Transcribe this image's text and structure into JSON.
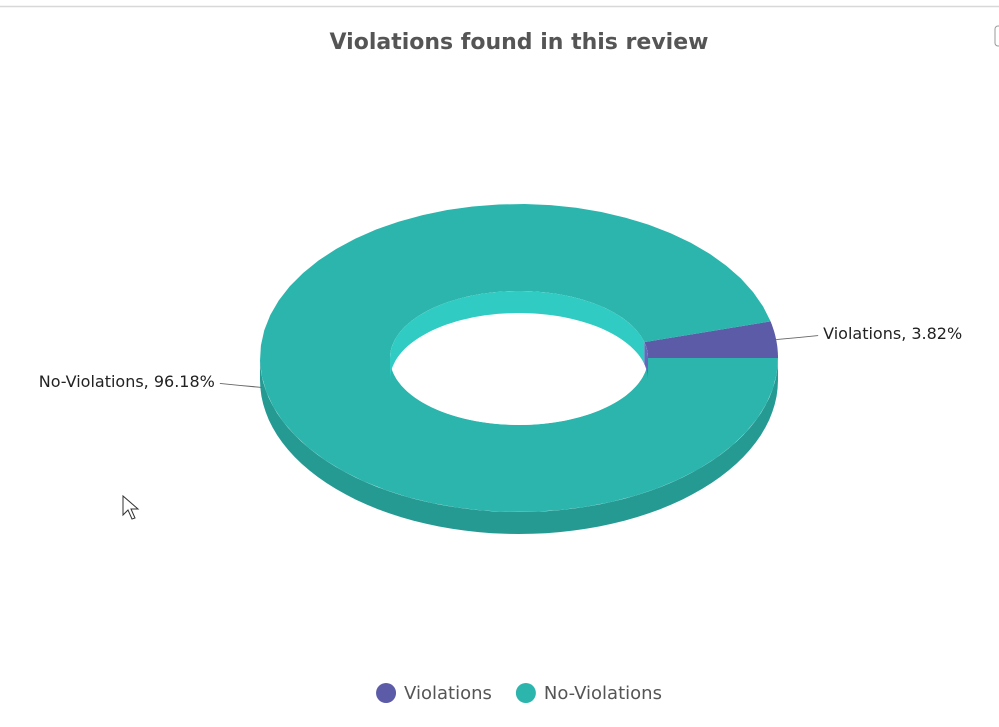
{
  "chart_data": {
    "type": "pie",
    "title": "Violations found in this review",
    "categories": [
      "Violations",
      "No-Violations"
    ],
    "values": [
      3.82,
      96.18
    ],
    "value_labels": [
      "Violations, 3.82%",
      "No-Violations, 96.18%"
    ],
    "colors": [
      "#5b5ba8",
      "#2bb5ad"
    ],
    "legend": "bottom"
  }
}
